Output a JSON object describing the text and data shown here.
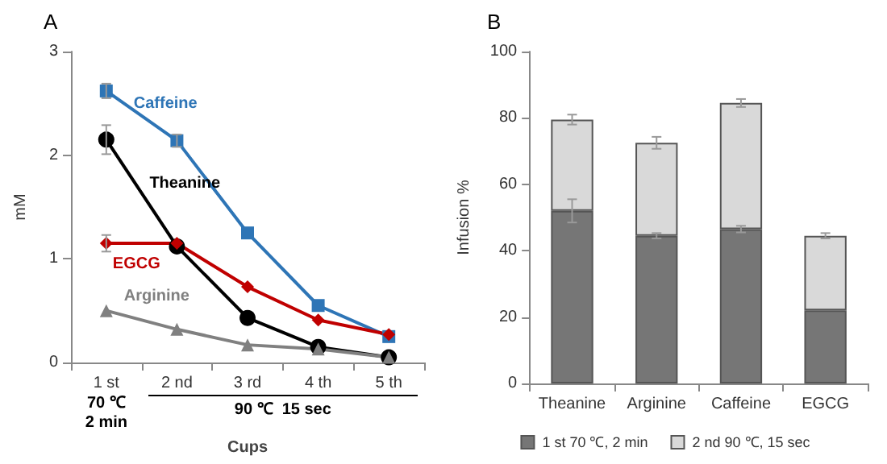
{
  "chart_data": [
    {
      "type": "line",
      "title": "A",
      "xlabel": "Cups",
      "ylabel": "mM",
      "categories": [
        "1 st",
        "2 nd",
        "3 rd",
        "4 th",
        "5 th"
      ],
      "series": [
        {
          "name": "Caffeine",
          "color": "#2e75b6",
          "marker": "square",
          "values": [
            2.62,
            2.14,
            1.25,
            0.55,
            0.25
          ],
          "errors": [
            0.07,
            0.06,
            null,
            null,
            null
          ]
        },
        {
          "name": "Theanine",
          "color": "#000000",
          "marker": "circle",
          "values": [
            2.15,
            1.12,
            0.43,
            0.15,
            0.05
          ],
          "errors": [
            0.14,
            null,
            null,
            null,
            null
          ]
        },
        {
          "name": "EGCG",
          "color": "#c00000",
          "marker": "diamond",
          "values": [
            1.15,
            1.15,
            0.73,
            0.41,
            0.27
          ],
          "errors": [
            0.08,
            null,
            null,
            null,
            null
          ]
        },
        {
          "name": "Arginine",
          "color": "#808080",
          "marker": "triangle",
          "values": [
            0.5,
            0.32,
            0.17,
            0.13,
            0.05
          ]
        }
      ],
      "ylim": [
        0,
        3
      ],
      "yticks": [
        0,
        1,
        2,
        3
      ],
      "grid": false,
      "legend": false,
      "annotations": [
        "70 ℃\n2 min",
        "90 ℃  15 sec"
      ]
    },
    {
      "type": "bar",
      "stacked": true,
      "title": "B",
      "ylabel": "Infusion %",
      "categories": [
        "Theanine",
        "Arginine",
        "Caffeine",
        "EGCG"
      ],
      "series": [
        {
          "name": "1 st 70 ℃, 2 min",
          "color": "#767676",
          "values": [
            52,
            44.5,
            46.5,
            22
          ],
          "errors": [
            3.5,
            0.8,
            1,
            null
          ]
        },
        {
          "name": "2 nd 90 ℃, 15 sec",
          "color": "#d9d9d9",
          "values": [
            27.5,
            28,
            38,
            22.5
          ],
          "errors": [
            1.5,
            1.8,
            1.2,
            0.8
          ]
        }
      ],
      "ylim": [
        0,
        100
      ],
      "yticks": [
        0,
        20,
        40,
        60,
        80,
        100
      ],
      "grid": false,
      "legend": "bottom"
    }
  ]
}
